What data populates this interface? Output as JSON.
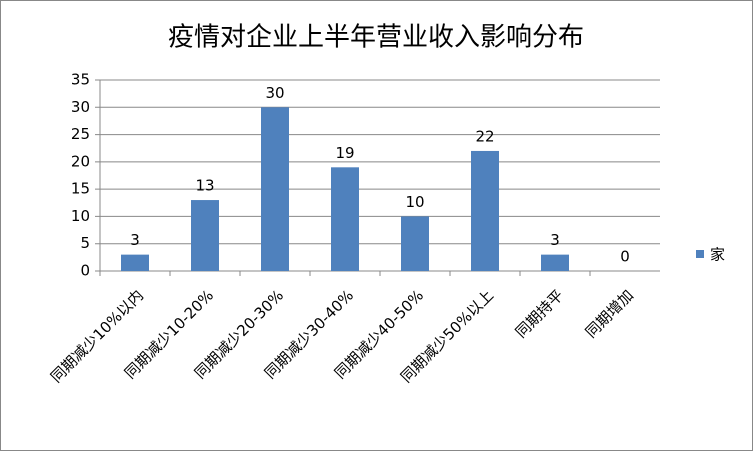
{
  "chart_data": {
    "type": "bar",
    "title": "疫情对企业上半年营业收入影响分布",
    "categories": [
      "同期减少10%以内",
      "同期减少10-20%",
      "同期减少20-30%",
      "同期减少30-40%",
      "同期减少40-50%",
      "同期减少50%以上",
      "同期持平",
      "同期增加"
    ],
    "series": [
      {
        "name": "家",
        "color": "#4f81bd",
        "values": [
          3,
          13,
          30,
          19,
          10,
          22,
          3,
          0
        ]
      }
    ],
    "ylim": [
      0,
      35
    ],
    "yticks": [
      0,
      5,
      10,
      15,
      20,
      25,
      30,
      35
    ],
    "grid": true,
    "legend": "right"
  }
}
